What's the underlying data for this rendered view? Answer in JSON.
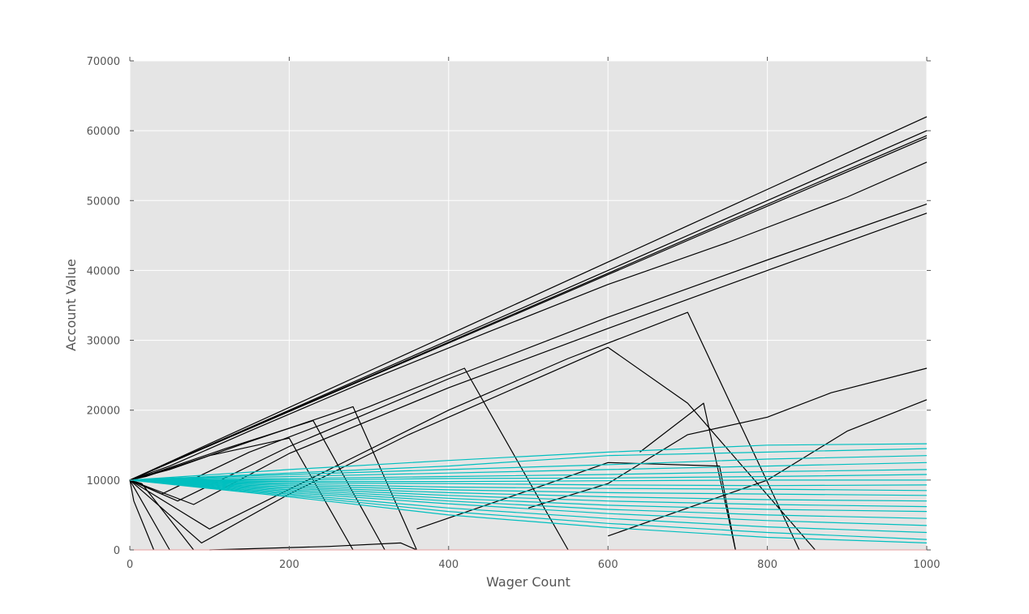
{
  "chart_data": {
    "type": "line",
    "title": "",
    "xlabel": "Wager Count",
    "ylabel": "Account Value",
    "xlim": [
      0,
      1000
    ],
    "ylim": [
      0,
      70000
    ],
    "x_ticks": [
      "0",
      "200",
      "400",
      "600",
      "800",
      "1000"
    ],
    "y_ticks": [
      "0",
      "10000",
      "20000",
      "30000",
      "40000",
      "50000",
      "60000",
      "70000"
    ],
    "grid": true,
    "legend": "none",
    "colors": {
      "background": "#e5e5e5",
      "grid": "#ffffff",
      "black_series": "#000000",
      "cyan_series": "#00bfbf"
    },
    "series": [
      {
        "group": "black",
        "x": [
          0,
          100,
          200,
          300,
          400,
          500,
          600,
          700,
          800,
          900,
          1000
        ],
        "values": [
          10000,
          15200,
          20400,
          25600,
          30800,
          36000,
          41200,
          46400,
          51600,
          56800,
          62000
        ]
      },
      {
        "group": "black",
        "x": [
          0,
          150,
          300,
          450,
          600,
          750,
          900,
          1000
        ],
        "values": [
          10000,
          17500,
          25000,
          32500,
          40000,
          47500,
          55000,
          60000
        ]
      },
      {
        "group": "black",
        "x": [
          0,
          150,
          300,
          450,
          600,
          750,
          900,
          1000
        ],
        "values": [
          10000,
          17400,
          24800,
          32200,
          39600,
          47000,
          54400,
          59300
        ]
      },
      {
        "group": "black",
        "x": [
          0,
          200,
          400,
          600,
          800,
          1000
        ],
        "values": [
          10000,
          19800,
          29600,
          39400,
          49200,
          59000
        ]
      },
      {
        "group": "black",
        "x": [
          0,
          50,
          150,
          300,
          450,
          600,
          750,
          900,
          1000
        ],
        "values": [
          10000,
          12000,
          17000,
          24300,
          31200,
          38000,
          44000,
          50500,
          55500
        ]
      },
      {
        "group": "black",
        "x": [
          0,
          60,
          200,
          400,
          600,
          800,
          1000
        ],
        "values": [
          10000,
          7000,
          14800,
          24500,
          33300,
          41500,
          49500
        ]
      },
      {
        "group": "black",
        "x": [
          0,
          80,
          200,
          400,
          600,
          800,
          1000
        ],
        "values": [
          10000,
          6500,
          13800,
          23200,
          31700,
          40000,
          48200
        ]
      },
      {
        "group": "black",
        "x": [
          0,
          100,
          250,
          400,
          550,
          700,
          840
        ],
        "values": [
          10000,
          3000,
          11500,
          20000,
          27400,
          34000,
          0
        ]
      },
      {
        "group": "black",
        "x": [
          0,
          90,
          200,
          350,
          500,
          600,
          700,
          860
        ],
        "values": [
          10000,
          1000,
          8000,
          16500,
          24000,
          29000,
          21000,
          0
        ]
      },
      {
        "group": "black",
        "x": [
          0,
          40,
          150,
          300,
          420,
          550
        ],
        "values": [
          10000,
          8000,
          14000,
          20500,
          26000,
          0
        ]
      },
      {
        "group": "black",
        "x": [
          0,
          50,
          150,
          280,
          360
        ],
        "values": [
          10000,
          11500,
          15500,
          20500,
          0
        ]
      },
      {
        "group": "black",
        "x": [
          0,
          30,
          120,
          230,
          320
        ],
        "values": [
          10000,
          11000,
          14500,
          18500,
          0
        ]
      },
      {
        "group": "black",
        "x": [
          0,
          20,
          100,
          200,
          280
        ],
        "values": [
          10000,
          10500,
          13500,
          16000,
          0
        ]
      },
      {
        "group": "black",
        "x": [
          0,
          15,
          80
        ],
        "values": [
          10000,
          9500,
          0
        ]
      },
      {
        "group": "black",
        "x": [
          0,
          10,
          50
        ],
        "values": [
          10000,
          8000,
          0
        ]
      },
      {
        "group": "black",
        "x": [
          0,
          5,
          30
        ],
        "values": [
          10000,
          7000,
          0
        ]
      },
      {
        "group": "black",
        "x": [
          100,
          250,
          340,
          360
        ],
        "values": [
          0,
          500,
          1000,
          0
        ]
      },
      {
        "group": "black",
        "x": [
          360,
          500,
          600,
          740,
          760
        ],
        "values": [
          3000,
          8500,
          12500,
          12000,
          0
        ]
      },
      {
        "group": "black",
        "x": [
          500,
          600,
          700,
          800,
          880,
          1000
        ],
        "values": [
          6000,
          9500,
          16500,
          19000,
          22500,
          26000
        ]
      },
      {
        "group": "black",
        "x": [
          600,
          700,
          800,
          900,
          1000
        ],
        "values": [
          2000,
          6000,
          10000,
          17000,
          21500
        ]
      },
      {
        "group": "black",
        "x": [
          640,
          720,
          760
        ],
        "values": [
          14000,
          21000,
          0
        ]
      },
      {
        "group": "cyan",
        "x": [
          0,
          200,
          400,
          600,
          800,
          1000
        ],
        "values": [
          10000,
          11500,
          12800,
          14000,
          15000,
          15200
        ]
      },
      {
        "group": "cyan",
        "x": [
          0,
          200,
          400,
          600,
          800,
          1000
        ],
        "values": [
          10000,
          11000,
          12000,
          13500,
          14000,
          14500
        ]
      },
      {
        "group": "cyan",
        "x": [
          0,
          200,
          400,
          600,
          800,
          1000
        ],
        "values": [
          10000,
          10800,
          11500,
          12200,
          13000,
          13500
        ]
      },
      {
        "group": "cyan",
        "x": [
          0,
          200,
          400,
          600,
          800,
          1000
        ],
        "values": [
          10000,
          10500,
          11000,
          11500,
          12000,
          12500
        ]
      },
      {
        "group": "cyan",
        "x": [
          0,
          200,
          400,
          600,
          800,
          1000
        ],
        "values": [
          10000,
          10200,
          10500,
          10800,
          11200,
          11500
        ]
      },
      {
        "group": "cyan",
        "x": [
          0,
          200,
          400,
          600,
          800,
          1000
        ],
        "values": [
          10000,
          10000,
          10200,
          10300,
          10500,
          10800
        ]
      },
      {
        "group": "cyan",
        "x": [
          0,
          200,
          400,
          600,
          800,
          1000
        ],
        "values": [
          10000,
          9800,
          9800,
          9900,
          10000,
          10000
        ]
      },
      {
        "group": "cyan",
        "x": [
          0,
          200,
          400,
          600,
          800,
          1000
        ],
        "values": [
          10000,
          9600,
          9500,
          9300,
          9200,
          9300
        ]
      },
      {
        "group": "cyan",
        "x": [
          0,
          200,
          400,
          600,
          800,
          1000
        ],
        "values": [
          10000,
          9400,
          9000,
          8800,
          8700,
          8500
        ]
      },
      {
        "group": "cyan",
        "x": [
          0,
          200,
          400,
          600,
          800,
          1000
        ],
        "values": [
          10000,
          9200,
          8600,
          8200,
          8000,
          7800
        ]
      },
      {
        "group": "cyan",
        "x": [
          0,
          200,
          400,
          600,
          800,
          1000
        ],
        "values": [
          10000,
          9000,
          8200,
          7600,
          7200,
          7000
        ]
      },
      {
        "group": "cyan",
        "x": [
          0,
          200,
          400,
          600,
          800,
          1000
        ],
        "values": [
          10000,
          8800,
          7800,
          7000,
          6500,
          6200
        ]
      },
      {
        "group": "cyan",
        "x": [
          0,
          200,
          400,
          600,
          800,
          1000
        ],
        "values": [
          10000,
          8600,
          7400,
          6400,
          5800,
          5500
        ]
      },
      {
        "group": "cyan",
        "x": [
          0,
          200,
          400,
          600,
          800,
          1000
        ],
        "values": [
          10000,
          8400,
          7000,
          5800,
          5000,
          4500
        ]
      },
      {
        "group": "cyan",
        "x": [
          0,
          200,
          400,
          600,
          800,
          1000
        ],
        "values": [
          10000,
          8200,
          6600,
          5200,
          4200,
          3500
        ]
      },
      {
        "group": "cyan",
        "x": [
          0,
          200,
          400,
          600,
          800,
          1000
        ],
        "values": [
          10000,
          8000,
          6000,
          4500,
          3300,
          2500
        ]
      },
      {
        "group": "cyan",
        "x": [
          0,
          200,
          400,
          600,
          800,
          1000
        ],
        "values": [
          10000,
          7800,
          5500,
          3800,
          2500,
          1500
        ]
      },
      {
        "group": "cyan",
        "x": [
          0,
          200,
          400,
          600,
          800,
          1000
        ],
        "values": [
          10000,
          7600,
          5000,
          3200,
          1800,
          1000
        ]
      }
    ]
  }
}
